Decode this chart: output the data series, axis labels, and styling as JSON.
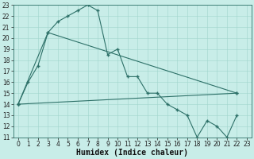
{
  "title": "",
  "xlabel": "Humidex (Indice chaleur)",
  "bg_color": "#c8ede8",
  "line_color": "#2d7068",
  "xlim": [
    -0.5,
    23.5
  ],
  "ylim": [
    11,
    23
  ],
  "xticks": [
    0,
    1,
    2,
    3,
    4,
    5,
    6,
    7,
    8,
    9,
    10,
    11,
    12,
    13,
    14,
    15,
    16,
    17,
    18,
    19,
    20,
    21,
    22,
    23
  ],
  "yticks": [
    11,
    12,
    13,
    14,
    15,
    16,
    17,
    18,
    19,
    20,
    21,
    22,
    23
  ],
  "series1_x": [
    0,
    1,
    2,
    3,
    4,
    5,
    6,
    7,
    8,
    9,
    10,
    11,
    12,
    13,
    14,
    15,
    16,
    17,
    18,
    19,
    20,
    21,
    22
  ],
  "series1_y": [
    14,
    16,
    17.5,
    20.5,
    21.5,
    22,
    22.5,
    23,
    22.5,
    18.5,
    19,
    16.5,
    16.5,
    15,
    15,
    14,
    13.5,
    13,
    11,
    12.5,
    12,
    11,
    13
  ],
  "series2_x": [
    0,
    3,
    22
  ],
  "series2_y": [
    14,
    20.5,
    15
  ],
  "series3_x": [
    0,
    22
  ],
  "series3_y": [
    14,
    15
  ],
  "xlabel_fontsize": 7,
  "tick_fontsize": 5.5
}
